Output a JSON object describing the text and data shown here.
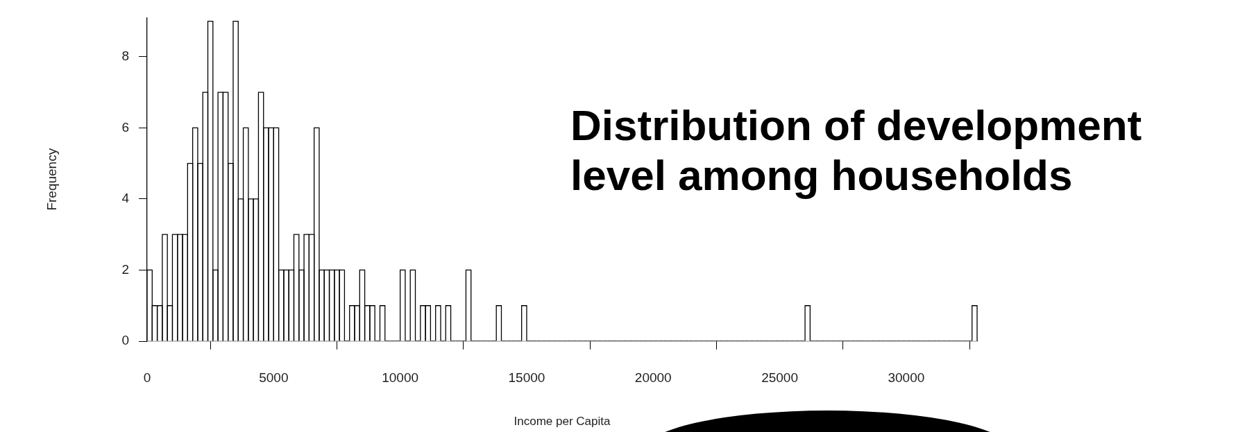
{
  "chart_data": {
    "type": "histogram",
    "title": "Distribution of development level among households",
    "xlabel": "Income per Capita",
    "ylabel": "Frequency",
    "bins": [
      0,
      200,
      400,
      600,
      800,
      1000,
      1200,
      1400,
      1600,
      1800,
      2000,
      2200,
      2400,
      2600,
      2800,
      3000,
      3200,
      3400,
      3600,
      3800,
      4000,
      4200,
      4400,
      4600,
      4800,
      5000,
      5200,
      5400,
      5600,
      5800,
      6000,
      6200,
      6400,
      6600,
      6800,
      7000,
      7200,
      7400,
      7600,
      7800,
      8000,
      8200,
      8400,
      8600,
      8800,
      9000,
      9200,
      9400,
      9600,
      9800,
      10000,
      10200,
      10400,
      10600,
      10800,
      11000,
      11200,
      11400,
      11600,
      11800,
      12000,
      12200,
      12400,
      12600,
      12800,
      13000,
      13200,
      13400,
      13600,
      13800,
      14000,
      14200,
      14400,
      14600,
      14800,
      15000,
      15200,
      15400,
      15600,
      15800,
      16000,
      16200,
      16400,
      16600,
      16800,
      17000,
      17200,
      17400,
      17600,
      17800,
      18000,
      18200,
      18400,
      18600,
      18800,
      19000,
      19200,
      19400,
      19600,
      19800,
      20000,
      20200,
      20400,
      20600,
      20800,
      21000,
      21200,
      21400,
      21600,
      21800,
      22000,
      22200,
      22400,
      22600,
      22800,
      23000,
      23200,
      23400,
      23600,
      23800,
      24000,
      24200,
      24400,
      24600,
      24800,
      25000,
      25200,
      25400,
      25600,
      25800,
      26000,
      26200,
      26400,
      26600,
      26800,
      27000,
      27200,
      27400,
      27600,
      27800,
      28000,
      28200,
      28400,
      28600,
      28800,
      29000,
      29200,
      29400,
      29600,
      29800,
      30000,
      30200,
      30400,
      30600,
      30800,
      31000,
      31200,
      31400,
      31600,
      31800,
      32000,
      32200,
      32400,
      32600,
      32800
    ],
    "values": [
      2,
      1,
      1,
      3,
      1,
      3,
      3,
      3,
      5,
      6,
      5,
      7,
      9,
      2,
      7,
      7,
      5,
      9,
      4,
      6,
      4,
      4,
      7,
      6,
      6,
      6,
      2,
      2,
      2,
      3,
      2,
      3,
      3,
      6,
      2,
      2,
      2,
      2,
      2,
      0,
      1,
      1,
      2,
      1,
      1,
      0,
      1,
      0,
      0,
      0,
      2,
      0,
      2,
      0,
      1,
      1,
      0,
      1,
      0,
      1,
      0,
      0,
      0,
      2,
      0,
      0,
      0,
      0,
      0,
      1,
      0,
      0,
      0,
      0,
      1,
      0,
      0,
      0,
      0,
      0,
      0,
      0,
      0,
      0,
      0,
      0,
      0,
      0,
      0,
      0,
      0,
      0,
      0,
      0,
      0,
      0,
      0,
      0,
      0,
      0,
      0,
      0,
      0,
      0,
      0,
      0,
      0,
      0,
      0,
      0,
      0,
      0,
      0,
      0,
      0,
      0,
      0,
      0,
      0,
      0,
      0,
      0,
      0,
      0,
      0,
      0,
      0,
      0,
      0,
      0,
      1,
      0,
      0,
      0,
      0,
      0,
      0,
      0,
      0,
      0,
      0,
      0,
      0,
      0,
      0,
      0,
      0,
      0,
      0,
      0,
      0,
      0,
      0,
      0,
      0,
      0,
      0,
      0,
      0,
      0,
      0,
      0,
      0,
      1
    ],
    "color": "#ffffff",
    "xlim": [
      0,
      32800
    ],
    "xticks": [
      0,
      5000,
      10000,
      15000,
      20000,
      25000,
      30000
    ],
    "ylim": [
      0,
      9.1
    ],
    "yticks": [
      0,
      2,
      4,
      6,
      8
    ],
    "grid": false,
    "legend": false
  }
}
